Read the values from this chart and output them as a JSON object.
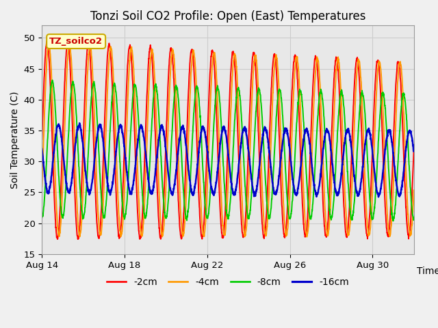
{
  "title": "Tonzi Soil CO2 Profile: Open (East) Temperatures",
  "xlabel": "Time",
  "ylabel": "Soil Temperature (C)",
  "ylim": [
    15,
    52
  ],
  "yticks": [
    15,
    20,
    25,
    30,
    35,
    40,
    45,
    50
  ],
  "fig_bg_color": "#f0f0f0",
  "plot_bg_color": "#e8e8e8",
  "legend_label": "TZ_soilco2",
  "legend_box_color": "#ffffcc",
  "legend_box_edge": "#ccaa00",
  "series_colors": [
    "#ff0000",
    "#ff9900",
    "#00cc00",
    "#0000cc"
  ],
  "series_labels": [
    "-2cm",
    "-4cm",
    "-8cm",
    "-16cm"
  ],
  "series_linewidths": [
    1.4,
    1.4,
    1.4,
    1.8
  ],
  "start_day": 14,
  "end_day": 32,
  "period_days": 1.0,
  "depth_amplitudes": [
    16.0,
    15.5,
    11.0,
    5.5
  ],
  "depth_means": [
    33.5,
    33.5,
    32.0,
    30.5
  ],
  "depth_phase_offsets_days": [
    0.0,
    0.08,
    0.25,
    0.55
  ],
  "amplitude_decay_total": [
    0.12,
    0.1,
    0.08,
    0.05
  ],
  "mean_decay_total": [
    1.5,
    1.5,
    1.2,
    0.8
  ],
  "n_points": 2000,
  "grid_color": "#cccccc",
  "title_fontsize": 12,
  "axis_label_fontsize": 10,
  "tick_label_fontsize": 9.5
}
